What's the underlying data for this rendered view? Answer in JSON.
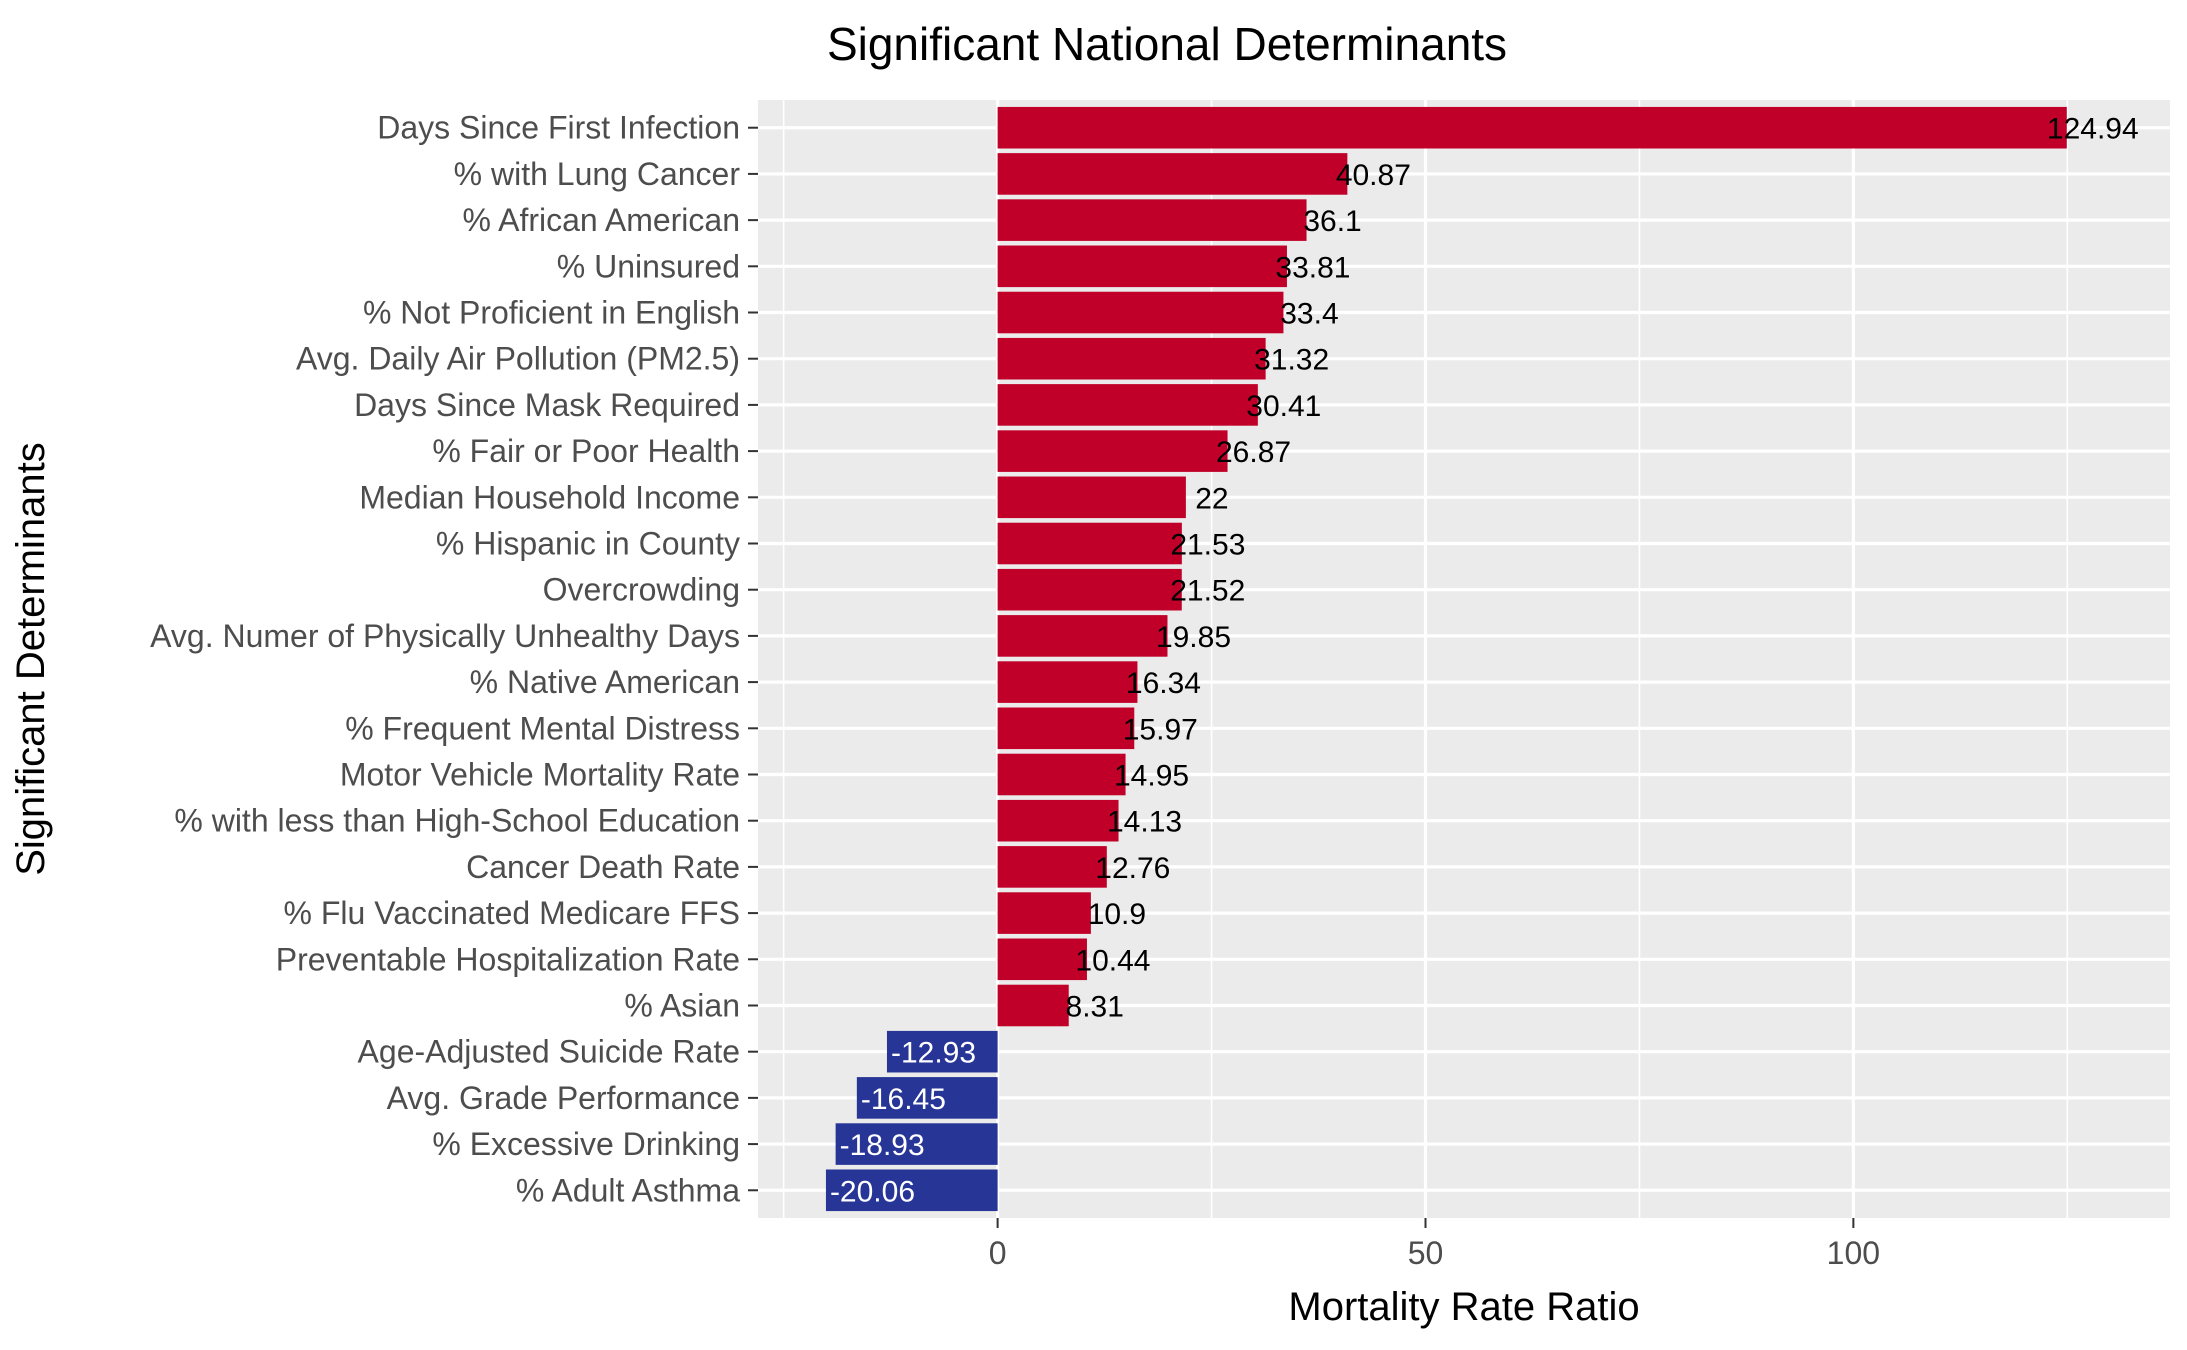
{
  "chart_data": {
    "type": "bar",
    "orientation": "horizontal",
    "title": "Significant National Determinants",
    "xlabel": "Mortality Rate Ratio",
    "ylabel": "Significant Determinants",
    "xlim": [
      -28,
      137
    ],
    "xticks": [
      0,
      50,
      100
    ],
    "minor_xticks": [
      -25,
      25,
      75,
      125
    ],
    "grid": true,
    "legend": "none",
    "positive_color": "#C00028",
    "negative_color": "#263596",
    "categories": [
      "Days Since First Infection",
      "% with Lung Cancer",
      "% African American",
      "% Uninsured",
      "% Not Proficient in English",
      "Avg. Daily Air Pollution (PM2.5)",
      "Days Since Mask Required",
      "% Fair or Poor Health",
      "Median Household Income",
      "% Hispanic in County",
      "Overcrowding",
      "Avg. Numer of Physically Unhealthy Days",
      "% Native American",
      "% Frequent Mental Distress",
      "Motor Vehicle Mortality Rate",
      "% with less than High-School Education",
      "Cancer Death Rate",
      "% Flu Vaccinated Medicare FFS",
      "Preventable Hospitalization Rate",
      "% Asian",
      "Age-Adjusted Suicide Rate",
      "Avg. Grade Performance",
      "% Excessive Drinking",
      "% Adult Asthma"
    ],
    "values": [
      124.94,
      40.87,
      36.1,
      33.81,
      33.4,
      31.32,
      30.41,
      26.87,
      22,
      21.53,
      21.52,
      19.85,
      16.34,
      15.97,
      14.95,
      14.13,
      12.76,
      10.9,
      10.44,
      8.31,
      -12.93,
      -16.45,
      -18.93,
      -20.06
    ],
    "data_labels": [
      "124.94",
      "40.87",
      "36.1",
      "33.81",
      "33.4",
      "31.32",
      "30.41",
      "26.87",
      "22",
      "21.53",
      "21.52",
      "19.85",
      "16.34",
      "15.97",
      "14.95",
      "14.13",
      "12.76",
      "10.9",
      "10.44",
      "8.31",
      "-12.93",
      "-16.45",
      "-18.93",
      "-20.06"
    ]
  }
}
